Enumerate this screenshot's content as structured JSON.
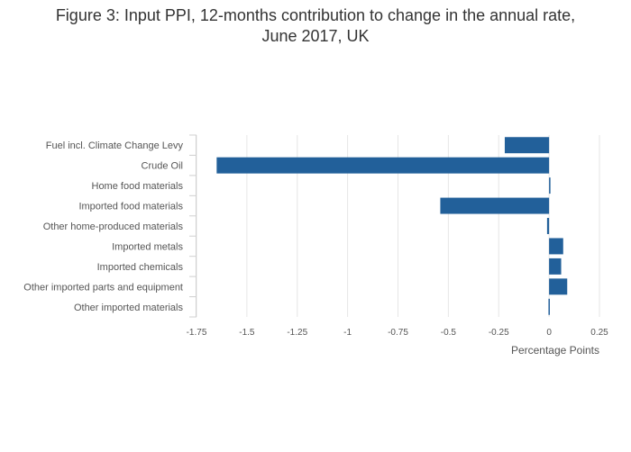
{
  "chart_data": {
    "type": "bar",
    "orientation": "horizontal",
    "title": [
      "Figure 3: Input PPI, 12-months contribution to change in the annual rate,",
      "June 2017, UK"
    ],
    "xlabel": "Percentage Points",
    "ylabel": "",
    "xlim": [
      -1.75,
      0.25
    ],
    "xticks": [
      -1.75,
      -1.5,
      -1.25,
      -1,
      -0.75,
      -0.5,
      -0.25,
      0,
      0.25
    ],
    "xtick_labels": [
      "-1.75",
      "-1.5",
      "-1.25",
      "-1",
      "-0.75",
      "-0.5",
      "-0.25",
      "0",
      "0.25"
    ],
    "grid": true,
    "bar_color": "#22609a",
    "categories": [
      "Fuel incl. Climate Change Levy",
      "Crude Oil",
      "Home food materials",
      "Imported food materials",
      "Other home-produced materials",
      "Imported metals",
      "Imported chemicals",
      "Other imported parts and equipment",
      "Other imported materials"
    ],
    "values": [
      -0.22,
      -1.65,
      0.005,
      -0.54,
      -0.01,
      0.07,
      0.06,
      0.09,
      -0.003
    ]
  }
}
